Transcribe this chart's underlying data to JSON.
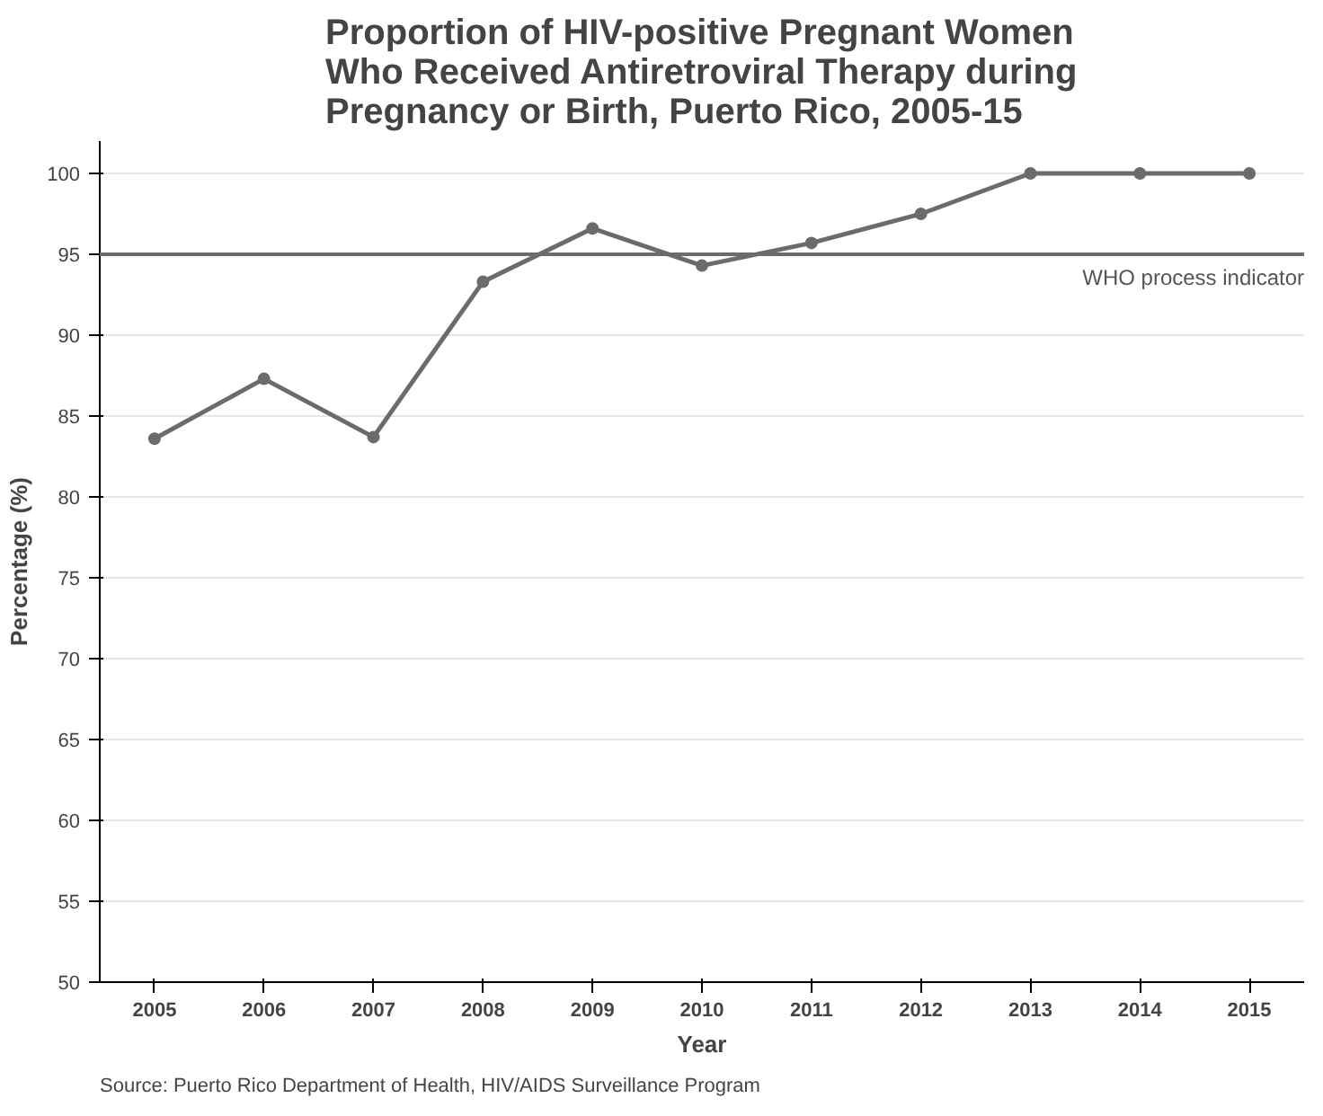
{
  "chart_data": {
    "type": "line",
    "title": "Proportion of HIV-positive Pregnant Women\nWho Received Antiretroviral Therapy during\nPregnancy or Birth, Puerto Rico, 2005-15",
    "xlabel": "Year",
    "ylabel": "Percentage (%)",
    "categories": [
      "2005",
      "2006",
      "2007",
      "2008",
      "2009",
      "2010",
      "2011",
      "2012",
      "2013",
      "2014",
      "2015"
    ],
    "series": [
      {
        "color": "#6b6b6b",
        "values": [
          83.6,
          87.3,
          83.7,
          93.3,
          96.6,
          94.3,
          95.7,
          97.5,
          100,
          100,
          100
        ]
      }
    ],
    "ylim": [
      50,
      102
    ],
    "yticks": [
      50,
      55,
      60,
      65,
      70,
      75,
      80,
      85,
      90,
      95,
      100
    ],
    "grid": "y",
    "marker": "circle",
    "line_style": "solid",
    "ref_lines": [
      {
        "axis": "y",
        "value": 95,
        "label": "WHO process indicator",
        "color": "#6b6b6b"
      }
    ],
    "annotations": [
      "Source: Puerto Rico Department of Health, HIV/AIDS Surveillance Program"
    ]
  }
}
